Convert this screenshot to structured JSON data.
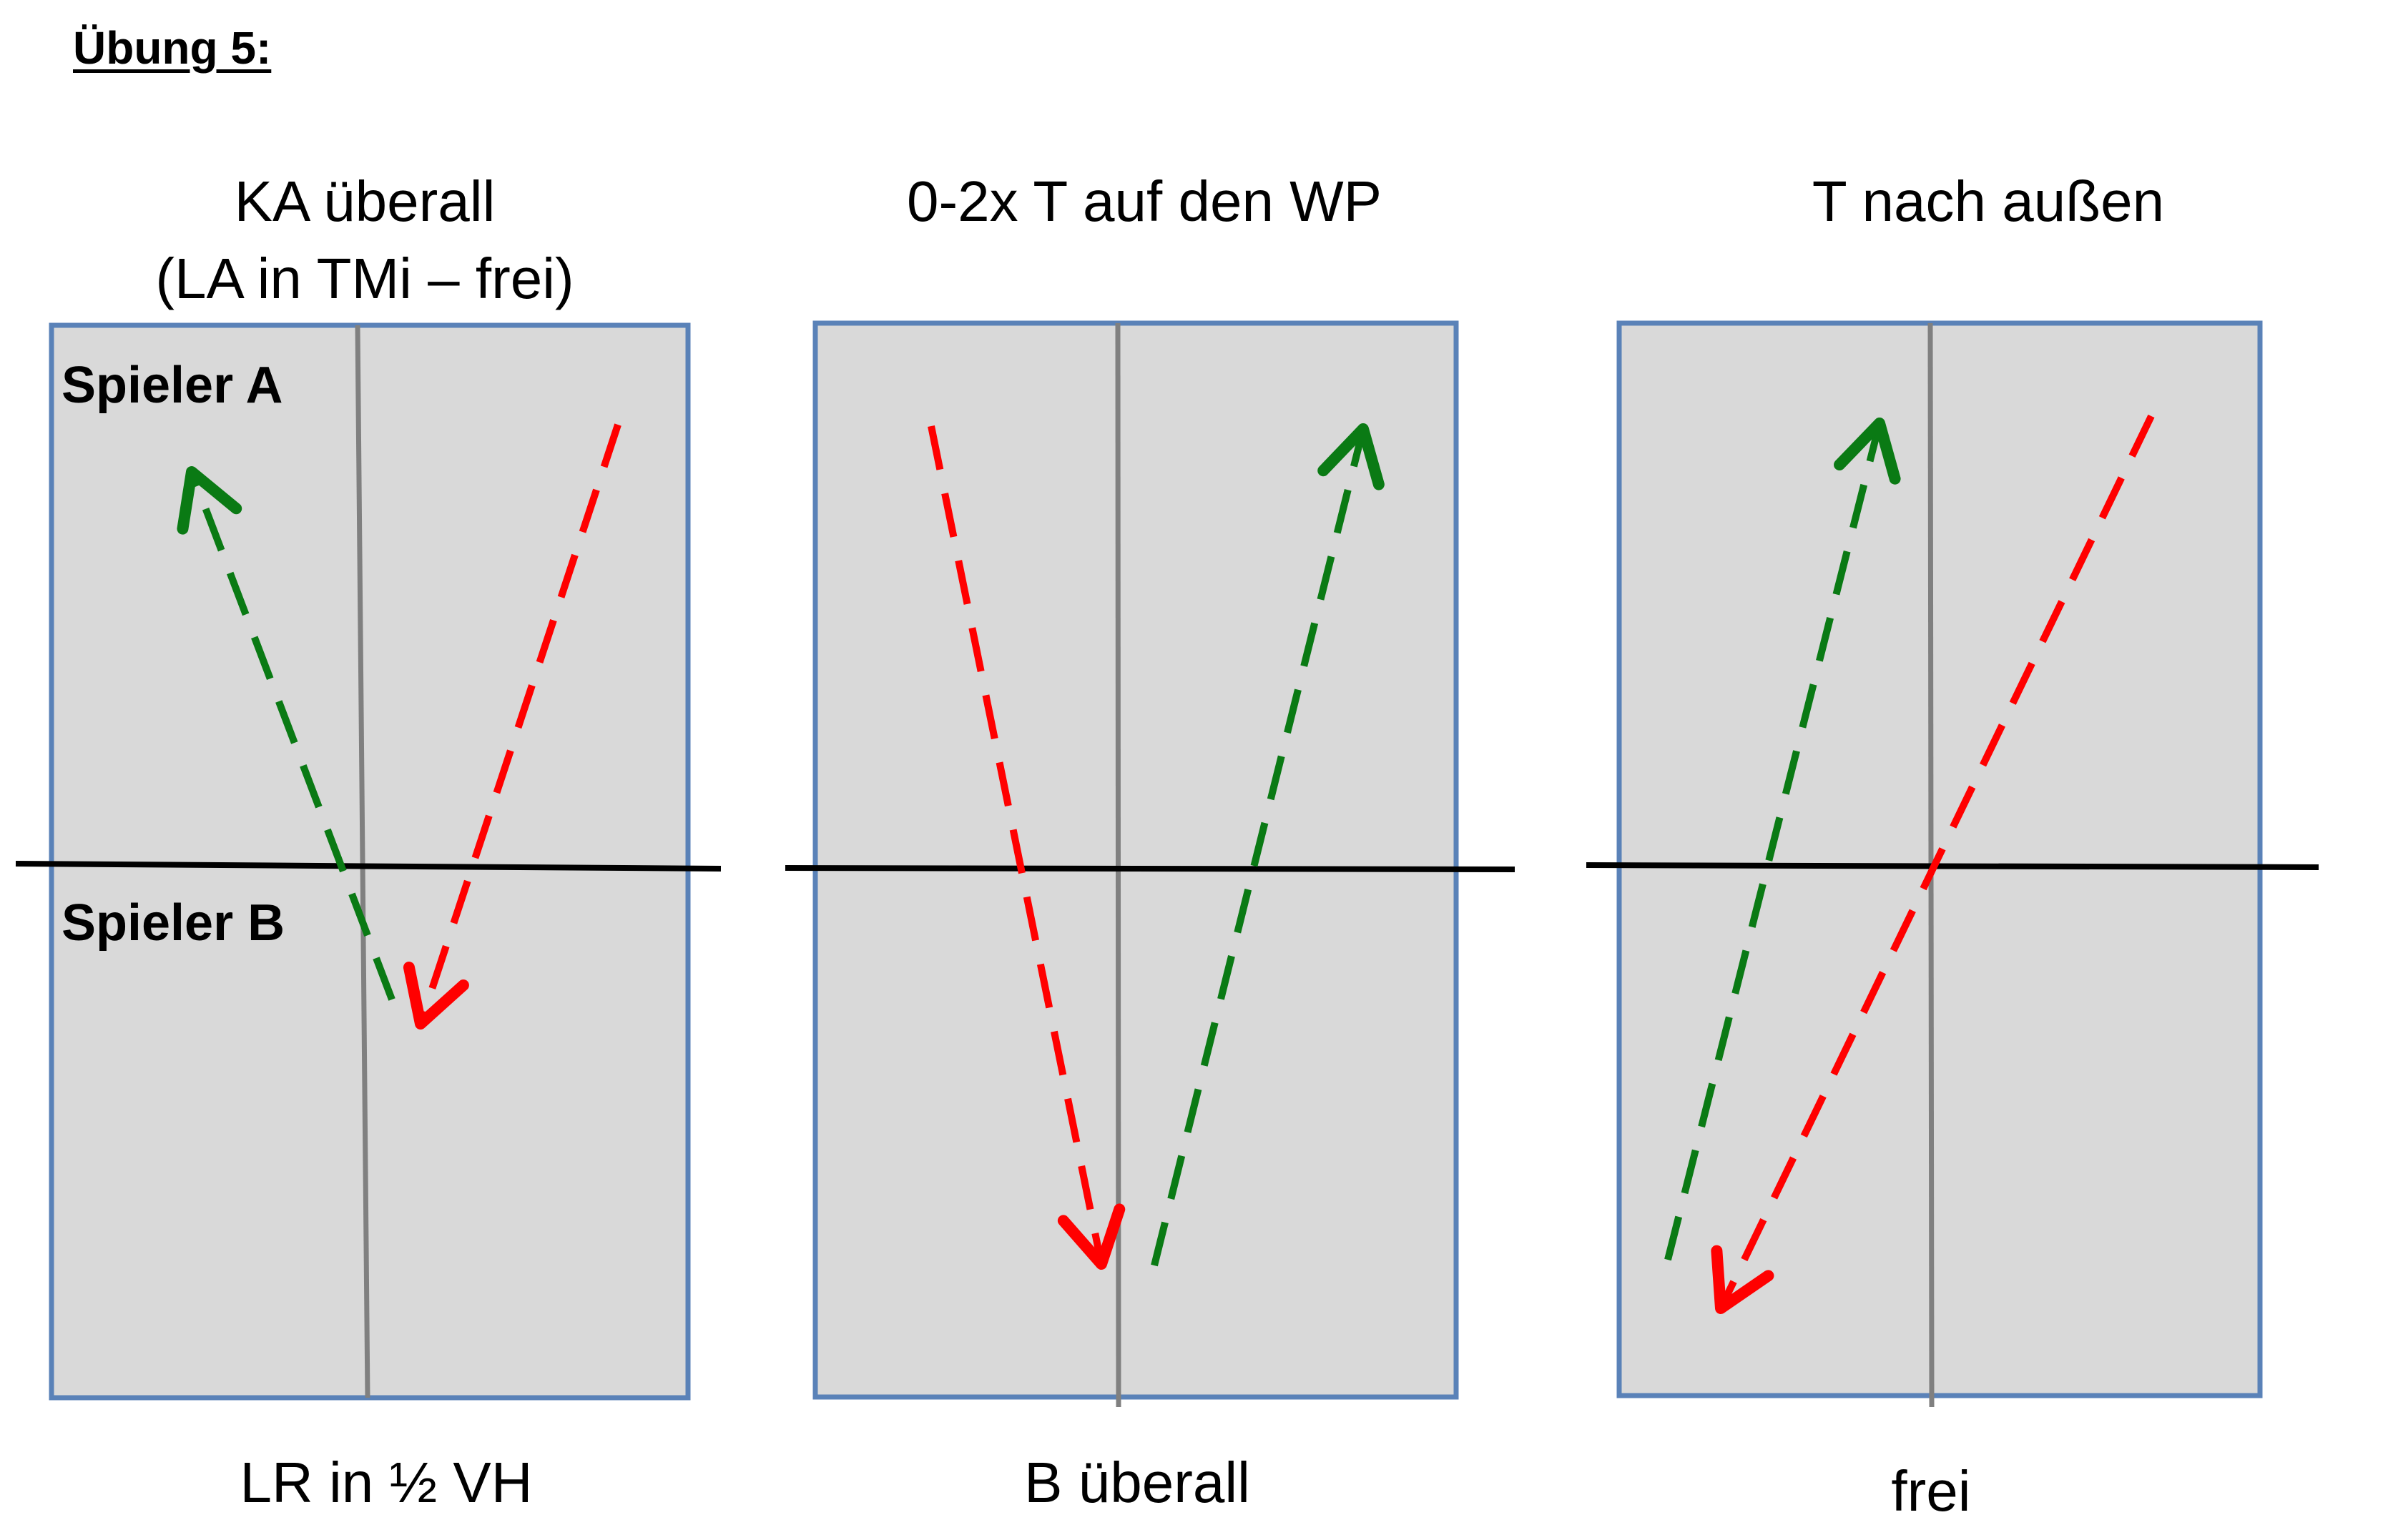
{
  "heading": "Übung 5:",
  "players": {
    "a": "Spieler A",
    "b": "Spieler B"
  },
  "exercises": [
    {
      "title_line1": "KA überall",
      "title_line2": "(LA in TMi – frei)",
      "caption": "LR in ½ VH"
    },
    {
      "title_line1": "0-2x T auf den WP",
      "title_line2": "",
      "caption": "B überall"
    },
    {
      "title_line1": "T nach außen",
      "title_line2": "",
      "caption": "frei"
    }
  ],
  "colors": {
    "table_fill": "#d9d9d9",
    "table_border": "#5a82b8",
    "center_line": "#808080",
    "net": "#000000",
    "ball_green": "#0a7a14",
    "ball_red": "#ff0000"
  }
}
